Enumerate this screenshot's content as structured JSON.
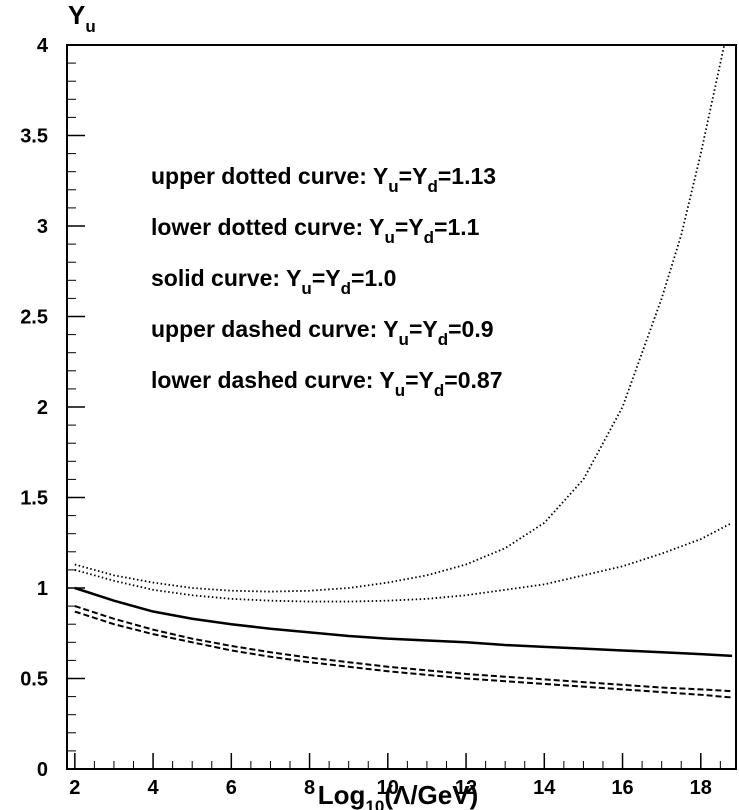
{
  "chart_data": {
    "type": "line",
    "ylabel": "Y",
    "ylabel_sub": "u",
    "xlabel": {
      "pre": "Log",
      "sub": "10",
      "post": "(Λ/GeV)"
    },
    "xlim": [
      1.8,
      18.9
    ],
    "ylim": [
      0,
      4
    ],
    "grid": false,
    "xticks": [
      2,
      4,
      6,
      8,
      10,
      12,
      14,
      16,
      18
    ],
    "yticks": [
      0,
      0.5,
      1,
      1.5,
      2,
      2.5,
      3,
      3.5,
      4
    ],
    "ytick_labels": [
      "0",
      "0.5",
      "1",
      "1.5",
      "2",
      "2.5",
      "3",
      "3.5",
      "4"
    ],
    "annotations": [
      {
        "prefix": "upper dotted curve: Y",
        "s1": "u",
        "mid": "=Y",
        "s2": "d",
        "value": "=1.13"
      },
      {
        "prefix": "lower dotted curve: Y",
        "s1": "u",
        "mid": "=Y",
        "s2": "d",
        "value": "=1.1"
      },
      {
        "prefix": "solid curve: Y",
        "s1": "u",
        "mid": "=Y",
        "s2": "d",
        "value": "=1.0"
      },
      {
        "prefix": "upper dashed curve: Y",
        "s1": "u",
        "mid": "=Y",
        "s2": "d",
        "value": "=0.9"
      },
      {
        "prefix": "lower dashed curve: Y",
        "s1": "u",
        "mid": "=Y",
        "s2": "d",
        "value": "=0.87"
      }
    ],
    "series": [
      {
        "style": "dotted",
        "x": [
          2,
          3,
          4,
          5,
          6,
          7,
          8,
          9,
          10,
          11,
          12,
          13,
          14,
          15,
          16,
          16.5,
          17,
          17.5,
          18,
          18.3,
          18.6,
          18.8
        ],
        "y": [
          1.13,
          1.07,
          1.03,
          1.0,
          0.985,
          0.98,
          0.985,
          1.0,
          1.03,
          1.07,
          1.13,
          1.22,
          1.36,
          1.6,
          2.0,
          2.3,
          2.6,
          2.95,
          3.4,
          3.7,
          4.0,
          4.0
        ]
      },
      {
        "style": "dotted",
        "x": [
          2,
          3,
          4,
          5,
          6,
          7,
          8,
          9,
          10,
          11,
          12,
          13,
          14,
          15,
          16,
          17,
          18,
          18.8
        ],
        "y": [
          1.1,
          1.04,
          0.99,
          0.96,
          0.94,
          0.93,
          0.925,
          0.925,
          0.93,
          0.94,
          0.96,
          0.99,
          1.02,
          1.07,
          1.12,
          1.19,
          1.27,
          1.36
        ]
      },
      {
        "style": "solid",
        "x": [
          2,
          3,
          4,
          5,
          6,
          7,
          8,
          9,
          10,
          11,
          12,
          13,
          14,
          15,
          16,
          17,
          18,
          18.8
        ],
        "y": [
          1.0,
          0.93,
          0.87,
          0.83,
          0.8,
          0.775,
          0.755,
          0.735,
          0.72,
          0.71,
          0.7,
          0.685,
          0.675,
          0.665,
          0.655,
          0.645,
          0.635,
          0.625
        ]
      },
      {
        "style": "dashed",
        "x": [
          2,
          3,
          4,
          5,
          6,
          7,
          8,
          9,
          10,
          11,
          12,
          13,
          14,
          15,
          16,
          17,
          18,
          18.8
        ],
        "y": [
          0.9,
          0.83,
          0.77,
          0.72,
          0.68,
          0.645,
          0.615,
          0.59,
          0.565,
          0.545,
          0.525,
          0.51,
          0.495,
          0.48,
          0.465,
          0.45,
          0.44,
          0.43
        ]
      },
      {
        "style": "dashed",
        "x": [
          2,
          3,
          4,
          5,
          6,
          7,
          8,
          9,
          10,
          11,
          12,
          13,
          14,
          15,
          16,
          17,
          18,
          18.8
        ],
        "y": [
          0.87,
          0.8,
          0.745,
          0.7,
          0.655,
          0.62,
          0.59,
          0.565,
          0.54,
          0.52,
          0.5,
          0.485,
          0.47,
          0.455,
          0.44,
          0.425,
          0.41,
          0.395
        ]
      }
    ]
  }
}
